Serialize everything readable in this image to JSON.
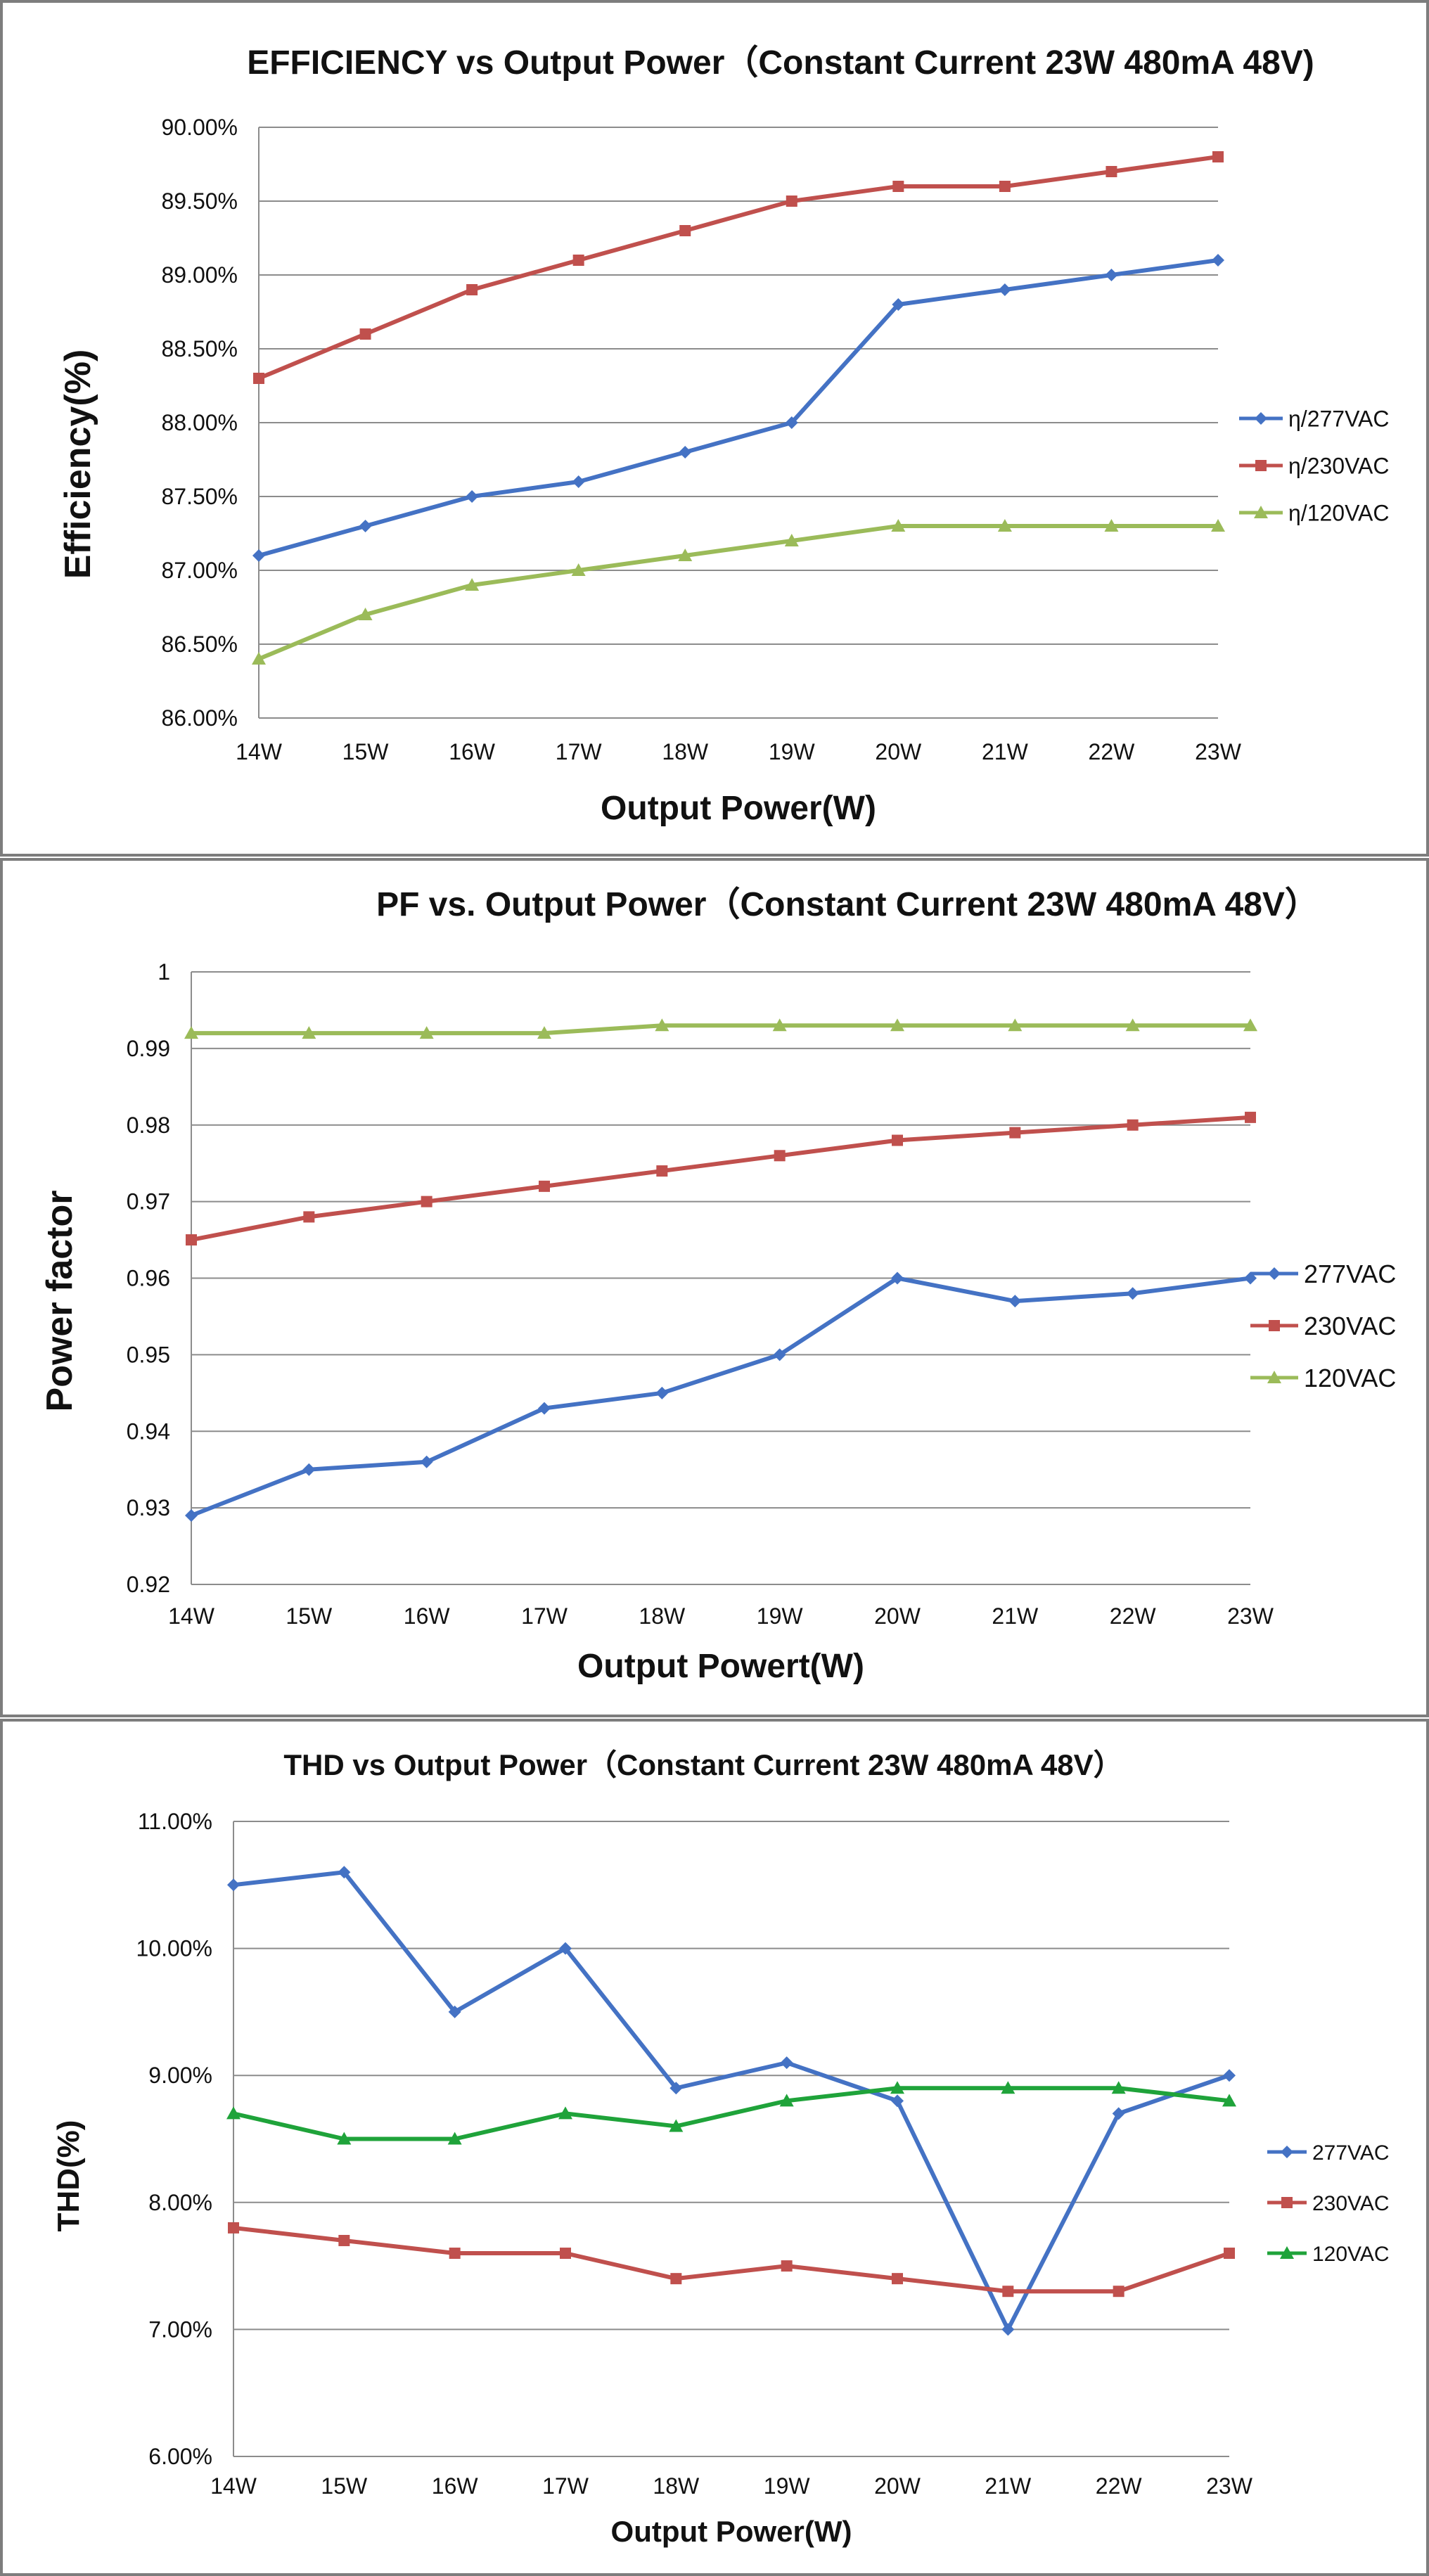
{
  "chart_data": [
    {
      "type": "line",
      "title": "EFFICIENCY vs Output Power（Constant Current 23W 480mA 48V)",
      "xlabel": "Output Power(W)",
      "ylabel": "Efficiency(%)",
      "categories": [
        "14W",
        "15W",
        "16W",
        "17W",
        "18W",
        "19W",
        "20W",
        "21W",
        "22W",
        "23W"
      ],
      "ylim": [
        86.0,
        90.0
      ],
      "ytick_step": 0.5,
      "ytick_labels": [
        "86.00%",
        "86.50%",
        "87.00%",
        "87.50%",
        "88.00%",
        "88.50%",
        "89.00%",
        "89.50%",
        "90.00%"
      ],
      "grid": true,
      "legend_position": "right",
      "series": [
        {
          "name": "η/277VAC",
          "color": "#4472c4",
          "marker": "diamond",
          "values": [
            87.1,
            87.3,
            87.5,
            87.6,
            87.8,
            88.0,
            88.8,
            88.9,
            89.0,
            89.1
          ]
        },
        {
          "name": "η/230VAC",
          "color": "#c0504d",
          "marker": "square",
          "values": [
            88.3,
            88.6,
            88.9,
            89.1,
            89.3,
            89.5,
            89.6,
            89.6,
            89.7,
            89.8
          ]
        },
        {
          "name": "η/120VAC",
          "color": "#9bbb59",
          "marker": "triangle",
          "values": [
            86.4,
            86.7,
            86.9,
            87.0,
            87.1,
            87.2,
            87.3,
            87.3,
            87.3,
            87.3
          ]
        }
      ]
    },
    {
      "type": "line",
      "title": "PF vs. Output Power（Constant Current 23W 480mA 48V）",
      "xlabel": "Output Powert(W)",
      "ylabel": "Power factor",
      "categories": [
        "14W",
        "15W",
        "16W",
        "17W",
        "18W",
        "19W",
        "20W",
        "21W",
        "22W",
        "23W"
      ],
      "ylim": [
        0.92,
        1.0
      ],
      "ytick_step": 0.01,
      "ytick_labels": [
        "0.92",
        "0.93",
        "0.94",
        "0.95",
        "0.96",
        "0.97",
        "0.98",
        "0.99",
        "1"
      ],
      "grid": true,
      "legend_position": "right",
      "series": [
        {
          "name": "277VAC",
          "color": "#4472c4",
          "marker": "diamond",
          "values": [
            0.929,
            0.935,
            0.936,
            0.943,
            0.945,
            0.95,
            0.96,
            0.957,
            0.958,
            0.96
          ]
        },
        {
          "name": "230VAC",
          "color": "#c0504d",
          "marker": "square",
          "values": [
            0.965,
            0.968,
            0.97,
            0.972,
            0.974,
            0.976,
            0.978,
            0.979,
            0.98,
            0.981
          ]
        },
        {
          "name": "120VAC",
          "color": "#9bbb59",
          "marker": "triangle",
          "values": [
            0.992,
            0.992,
            0.992,
            0.992,
            0.993,
            0.993,
            0.993,
            0.993,
            0.993,
            0.993
          ]
        }
      ]
    },
    {
      "type": "line",
      "title": "THD vs Output Power（Constant Current 23W  480mA 48V）",
      "xlabel": "Output Power(W)",
      "ylabel": "THD(%)",
      "categories": [
        "14W",
        "15W",
        "16W",
        "17W",
        "18W",
        "19W",
        "20W",
        "21W",
        "22W",
        "23W"
      ],
      "ylim": [
        6.0,
        11.0
      ],
      "ytick_step": 1.0,
      "ytick_labels": [
        "6.00%",
        "7.00%",
        "8.00%",
        "9.00%",
        "10.00%",
        "11.00%"
      ],
      "grid": true,
      "legend_position": "right",
      "series": [
        {
          "name": "277VAC",
          "color": "#4472c4",
          "marker": "diamond",
          "values": [
            10.5,
            10.6,
            9.5,
            10.0,
            8.9,
            9.1,
            8.8,
            7.0,
            8.7,
            9.0
          ]
        },
        {
          "name": "230VAC",
          "color": "#c0504d",
          "marker": "square",
          "values": [
            7.8,
            7.7,
            7.6,
            7.6,
            7.4,
            7.5,
            7.4,
            7.3,
            7.3,
            7.6
          ]
        },
        {
          "name": "120VAC",
          "color": "#1fa33a",
          "marker": "triangle",
          "values": [
            8.7,
            8.5,
            8.5,
            8.7,
            8.6,
            8.8,
            8.9,
            8.9,
            8.9,
            8.8
          ]
        }
      ]
    }
  ]
}
